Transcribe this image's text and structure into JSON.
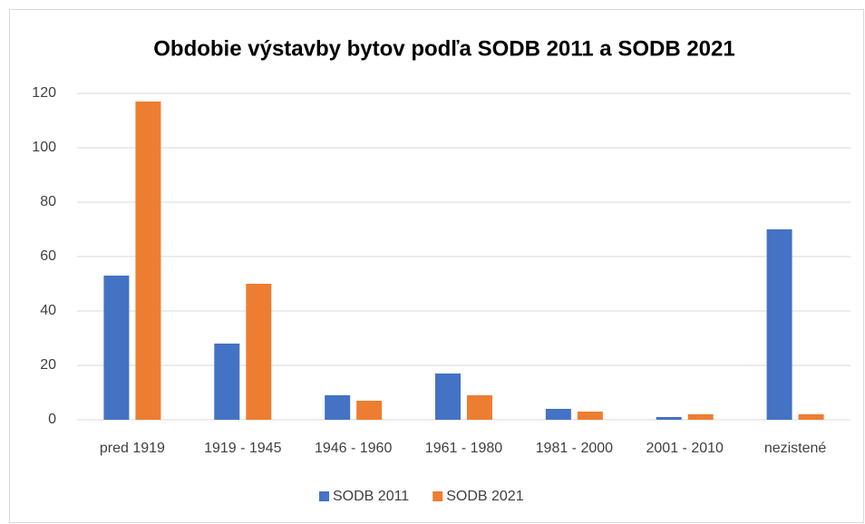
{
  "chart_data": {
    "type": "bar",
    "title": "Obdobie výstavby bytov podľa SODB 2011 a SODB 2021",
    "categories": [
      "pred 1919",
      "1919 - 1945",
      "1946 - 1960",
      "1961 - 1980",
      "1981 - 2000",
      "2001 - 2010",
      "nezistené"
    ],
    "series": [
      {
        "name": "SODB 2011",
        "color": "#4472c4",
        "values": [
          53,
          28,
          9,
          17,
          4,
          1,
          70
        ]
      },
      {
        "name": "SODB 2021",
        "color": "#ed7d31",
        "values": [
          117,
          50,
          7,
          9,
          3,
          2,
          2
        ]
      }
    ],
    "ylim": [
      0,
      120
    ],
    "yticks": [
      0,
      20,
      40,
      60,
      80,
      100,
      120
    ],
    "grid": true,
    "legend": "bottom"
  }
}
